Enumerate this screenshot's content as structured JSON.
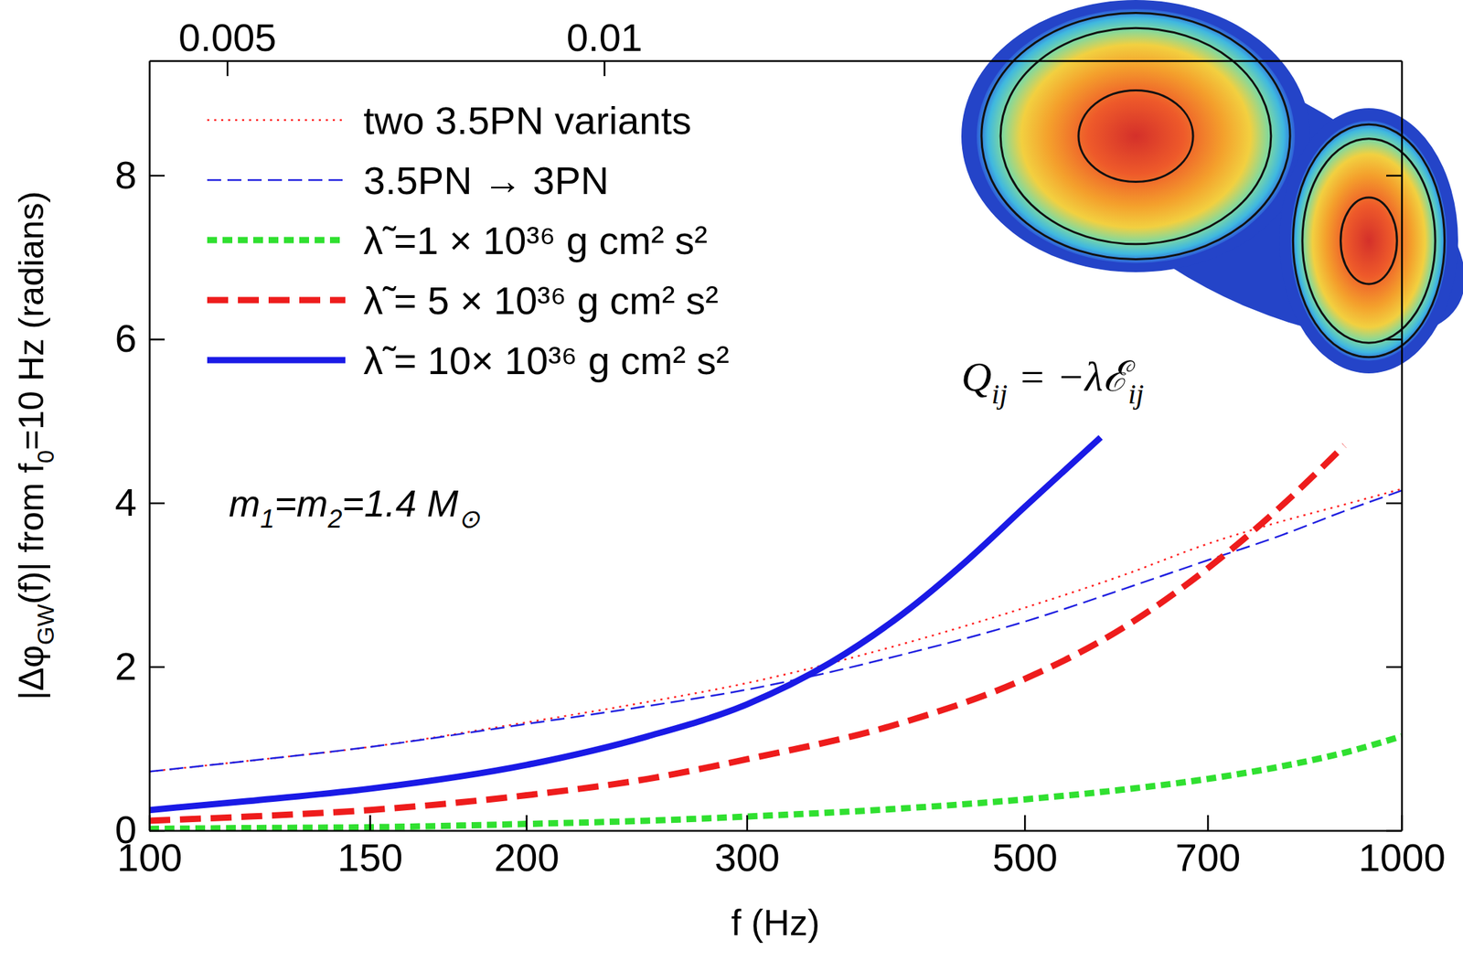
{
  "chart_data": {
    "type": "line",
    "xlabel": "f (Hz)",
    "ylabel": [
      {
        "text": "|Δφ"
      },
      {
        "text": "GW",
        "sub": true
      },
      {
        "text": "(f)| from f"
      },
      {
        "text": "0",
        "sub": true
      },
      {
        "text": "=10 Hz  (radians)"
      }
    ],
    "xlim": [
      100,
      1000
    ],
    "xticks": [
      100,
      150,
      200,
      300,
      500,
      700,
      1000
    ],
    "x2lim": [
      0.004333,
      0.04333
    ],
    "x2ticks": [
      0.005,
      0.01
    ],
    "ylim": [
      0,
      9.4
    ],
    "yticks": [
      0,
      2,
      4,
      6,
      8
    ],
    "log": "x",
    "legend": "upper left",
    "annotations": [
      {
        "parts": [
          {
            "text": "m"
          },
          {
            "text": "1",
            "sub": true
          },
          {
            "text": "=m"
          },
          {
            "text": "2",
            "sub": true
          },
          {
            "text": "=1.4 M"
          },
          {
            "text": "⊙",
            "sub": true
          }
        ]
      },
      {
        "parts": [
          {
            "text": "Q"
          },
          {
            "text": "ij",
            "sub": true
          },
          {
            "text": " = −λℰ"
          },
          {
            "text": "ij",
            "sub": true
          }
        ]
      }
    ],
    "series": [
      {
        "name": "two 3.5PN variants",
        "color": "#ff2020",
        "line_style": "dotted",
        "x": [
          100,
          120,
          150,
          200,
          250,
          300,
          400,
          500,
          600,
          700,
          800,
          900,
          1000
        ],
        "values": [
          0.72,
          0.85,
          1.02,
          1.32,
          1.57,
          1.8,
          2.28,
          2.72,
          3.12,
          3.5,
          3.77,
          3.98,
          4.17
        ]
      },
      {
        "name": "3.5PN → 3PN",
        "color": "#2020e0",
        "line_style": "dashed",
        "x": [
          100,
          120,
          150,
          200,
          250,
          300,
          400,
          500,
          600,
          700,
          800,
          900,
          1000
        ],
        "values": [
          0.72,
          0.85,
          1.02,
          1.3,
          1.52,
          1.72,
          2.15,
          2.55,
          2.95,
          3.3,
          3.6,
          3.9,
          4.15
        ]
      },
      {
        "name": "λ̃ =1 × 10³⁶ g cm² s²",
        "color": "#30e030",
        "line_style": "dotted",
        "x": [
          100,
          120,
          150,
          200,
          250,
          300,
          400,
          500,
          600,
          700,
          800,
          900,
          1000
        ],
        "values": [
          0.02,
          0.03,
          0.04,
          0.08,
          0.12,
          0.17,
          0.27,
          0.38,
          0.5,
          0.63,
          0.78,
          0.95,
          1.15
        ]
      },
      {
        "name": "λ̃ = 5 × 10³⁶ g cm² s²",
        "color": "#ee1c1c",
        "line_style": "dashed",
        "x": [
          100,
          120,
          150,
          200,
          250,
          300,
          400,
          500,
          600,
          700,
          800,
          900
        ],
        "values": [
          0.12,
          0.17,
          0.25,
          0.43,
          0.63,
          0.87,
          1.32,
          1.85,
          2.48,
          3.2,
          3.95,
          4.7
        ]
      },
      {
        "name": "λ̃ = 10× 10³⁶ g cm² s²",
        "color": "#1a1ae6",
        "line_style": "solid",
        "x": [
          100,
          120,
          150,
          200,
          250,
          300,
          350,
          400,
          450,
          500,
          575
        ],
        "values": [
          0.25,
          0.36,
          0.51,
          0.8,
          1.15,
          1.54,
          2.05,
          2.65,
          3.3,
          3.95,
          4.8
        ]
      }
    ]
  }
}
